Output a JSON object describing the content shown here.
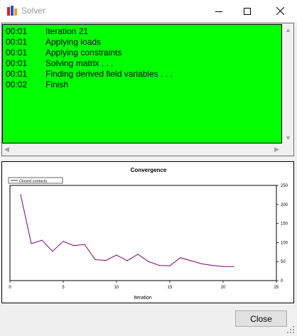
{
  "window": {
    "title": "Solver",
    "icon": "solver-app-icon",
    "controls": {
      "minimize": "minimize-icon",
      "maximize": "maximize-icon",
      "close": "close-icon"
    }
  },
  "log": {
    "background": "#00ff00",
    "rows": [
      {
        "time": "00:01",
        "message": "Iteration 21"
      },
      {
        "time": "00:01",
        "message": "Applying loads"
      },
      {
        "time": "00:01",
        "message": "Applying constraints"
      },
      {
        "time": "00:01",
        "message": "Solving matrix . . ."
      },
      {
        "time": "00:01",
        "message": "Finding derived field variables . . ."
      },
      {
        "time": "00:02",
        "message": "Finish"
      }
    ]
  },
  "chart_data": {
    "type": "line",
    "title": "Convergence",
    "xlabel": "Iteration",
    "ylabel": "",
    "xlim": [
      0,
      25
    ],
    "ylim": [
      0,
      250
    ],
    "x_ticks": [
      0,
      5,
      10,
      15,
      20,
      25
    ],
    "y_ticks": [
      0,
      50,
      100,
      150,
      200,
      250
    ],
    "y_axis_side": "right",
    "grid": false,
    "legend_placement": "top-left",
    "series": [
      {
        "name": "Closed contacts",
        "color": "#800080",
        "x": [
          1,
          2,
          3,
          4,
          5,
          6,
          7,
          8,
          9,
          10,
          11,
          12,
          13,
          14,
          15,
          16,
          17,
          18,
          19,
          20,
          21
        ],
        "values": [
          226,
          97,
          106,
          77,
          103,
          92,
          95,
          55,
          53,
          67,
          52,
          69,
          50,
          40,
          39,
          60,
          52,
          44,
          40,
          37,
          37
        ]
      }
    ]
  },
  "buttons": {
    "close_label": "Close"
  }
}
